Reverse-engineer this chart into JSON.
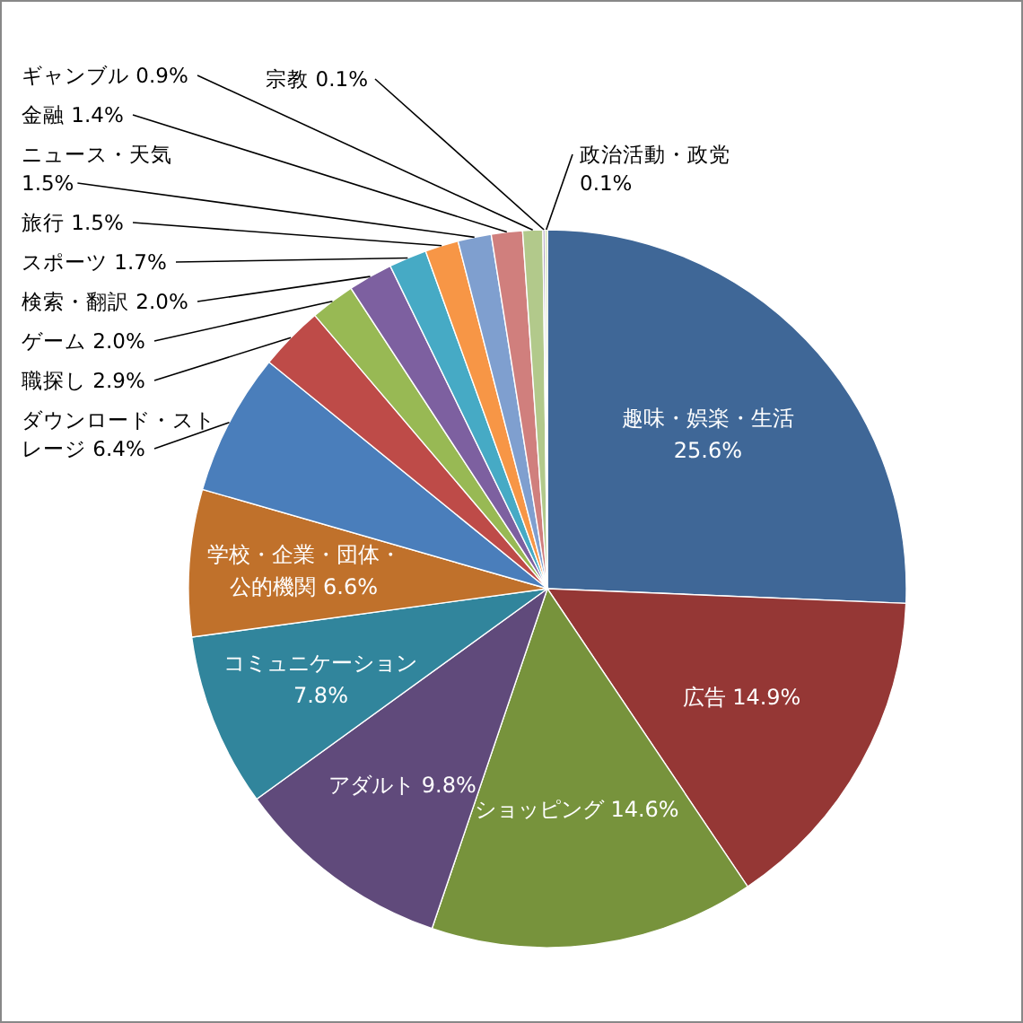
{
  "chart_data": {
    "type": "pie",
    "categories": [
      "趣味・娯楽・生活",
      "広告",
      "ショッピング",
      "アダルト",
      "コミュニケーション",
      "学校・企業・団体・公的機関",
      "ダウンロード・ストレージ",
      "職探し",
      "ゲーム",
      "検索・翻訳",
      "スポーツ",
      "旅行",
      "ニュース・天気",
      "金融",
      "ギャンブル",
      "宗教",
      "政治活動・政党"
    ],
    "values": [
      25.6,
      14.9,
      14.6,
      9.8,
      7.8,
      6.6,
      6.4,
      2.9,
      2.0,
      2.0,
      1.7,
      1.5,
      1.5,
      1.4,
      0.9,
      0.1,
      0.1
    ],
    "value_labels": [
      "25.6%",
      "14.9%",
      "14.6%",
      "9.8%",
      "7.8%",
      "6.6%",
      "6.4%",
      "2.9%",
      "2.0%",
      "2.0%",
      "1.7%",
      "1.5%",
      "1.5%",
      "1.4%",
      "0.9%",
      "0.1%",
      "0.1%"
    ],
    "colors": [
      "#3f6797",
      "#953735",
      "#77933c",
      "#604a7b",
      "#31859c",
      "#c0712b",
      "#4a7ebb",
      "#be4b48",
      "#98b954",
      "#7d60a0",
      "#46aac5",
      "#f79646",
      "#7f9fcf",
      "#d07f7d",
      "#b2c98b",
      "#a99bbd",
      "#c3d69b"
    ]
  }
}
